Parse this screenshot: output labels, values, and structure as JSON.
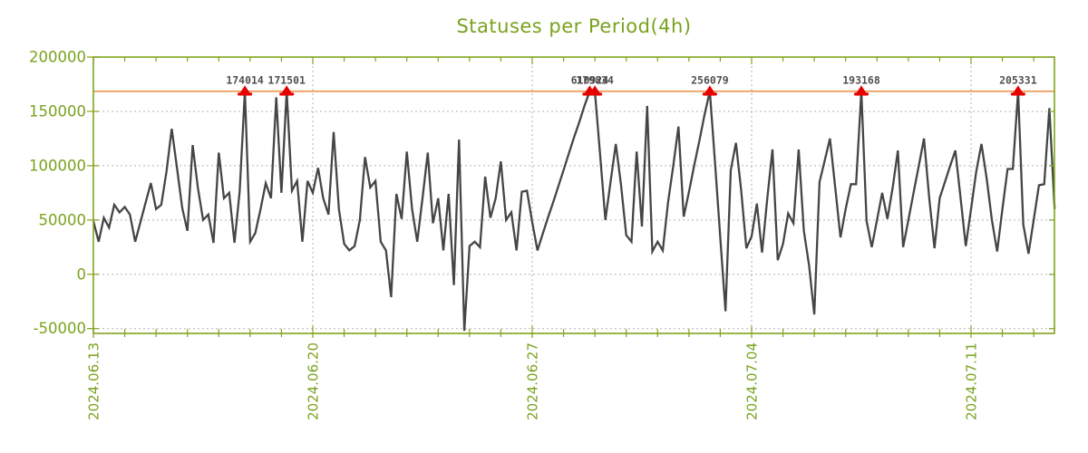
{
  "title": "Statuses per Period(4h)",
  "colors": {
    "title_green": "#79a21e",
    "axis_green": "#7fa41c",
    "grid_gray": "#b3b3b3",
    "series_dark": "#454545",
    "overflow_orange": "#ed9b57",
    "marker_red": "#e60000",
    "peak_label_gray": "#4f4f4f",
    "background": "#ffffff"
  },
  "chart_data": {
    "type": "line",
    "title": "Statuses per Period(4h)",
    "period_hours": 4,
    "x_tick_labels": [
      "2024.06.13",
      "2024.06.20",
      "2024.06.27",
      "2024.07.04",
      "2024.07.11"
    ],
    "x_major_interval_days": 7,
    "x_minor_interval_days": 1,
    "x_total_days": 31,
    "y_ticks": [
      200000,
      150000,
      100000,
      50000,
      0,
      -50000
    ],
    "y_top": 200000,
    "y_bottom": -54500,
    "grid": true,
    "legend": "none",
    "overflow_line_value": 168500,
    "series": [
      {
        "name": "statuses",
        "values": [
          49000,
          30000,
          52000,
          43000,
          64000,
          57000,
          62000,
          55000,
          30000,
          48000,
          66000,
          84000,
          60000,
          64000,
          95000,
          134000,
          98000,
          61000,
          40000,
          119000,
          80000,
          50000,
          55000,
          29000,
          112000,
          70000,
          75000,
          29000,
          76000,
          174014,
          30000,
          38000,
          60000,
          84000,
          70000,
          163000,
          75000,
          171501,
          77000,
          86000,
          30000,
          86000,
          75000,
          98000,
          70000,
          55000,
          131000,
          60000,
          28000,
          22000,
          26000,
          50000,
          108000,
          80000,
          86000,
          30000,
          22000,
          -21000,
          74000,
          51000,
          113000,
          60000,
          30000,
          70000,
          112000,
          47000,
          70000,
          22000,
          74000,
          -10000,
          124000,
          -52000,
          26000,
          30000,
          25000,
          90000,
          52000,
          70000,
          104000,
          50000,
          57000,
          22000,
          76000,
          77000,
          48000,
          22000,
          37000,
          52000,
          66000,
          81000,
          96000,
          111000,
          126000,
          140000,
          155000,
          610924,
          179834,
          110000,
          50000,
          85000,
          120000,
          82000,
          36000,
          30000,
          113000,
          44000,
          155000,
          21000,
          30000,
          22000,
          66000,
          100000,
          136000,
          53000,
          76000,
          100000,
          123000,
          147000,
          256079,
          102000,
          34000,
          -34000,
          96000,
          121000,
          77000,
          24000,
          35000,
          65000,
          20000,
          70000,
          115000,
          13000,
          28000,
          56000,
          47000,
          115000,
          40000,
          8000,
          -37000,
          85000,
          105000,
          125000,
          80000,
          34000,
          60000,
          83000,
          83000,
          193168,
          49000,
          25000,
          50000,
          75000,
          51000,
          80000,
          114000,
          25000,
          50000,
          75000,
          100000,
          125000,
          70000,
          24000,
          70000,
          85000,
          100000,
          114000,
          70000,
          26000,
          60000,
          95000,
          120000,
          88000,
          50000,
          21000,
          60000,
          97000,
          97000,
          205331,
          46000,
          19000,
          50000,
          82000,
          83000,
          153000,
          60000
        ]
      }
    ],
    "flagged_peaks": [
      {
        "index": 29,
        "label": "174014"
      },
      {
        "index": 37,
        "label": "171501"
      },
      {
        "index": 95,
        "label": "610924"
      },
      {
        "index": 96,
        "label": "179834"
      },
      {
        "index": 118,
        "label": "256079"
      },
      {
        "index": 147,
        "label": "193168"
      },
      {
        "index": 177,
        "label": "205331"
      }
    ]
  }
}
